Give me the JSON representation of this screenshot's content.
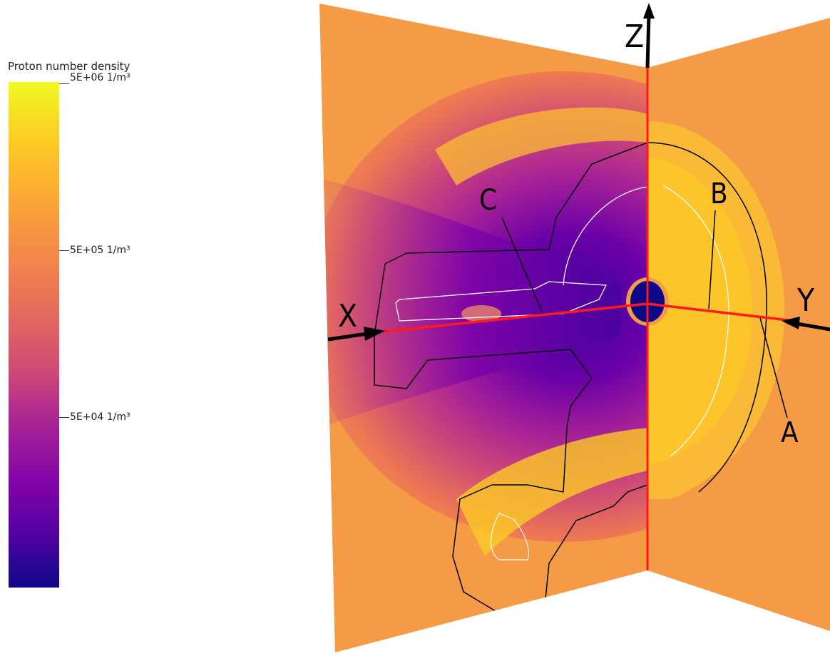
{
  "colorbar": {
    "title": "Proton number density",
    "ticks": [
      {
        "label": "5E+06 1/m³",
        "value": 5000000
      },
      {
        "label": "5E+05 1/m³",
        "value": 500000
      },
      {
        "label": "5E+04 1/m³",
        "value": 50000
      }
    ],
    "colormap": "plasma",
    "scale": "log"
  },
  "axes": {
    "x": "X",
    "y": "Y",
    "z": "Z"
  },
  "markers": {
    "a": "A",
    "b": "B",
    "c": "C"
  },
  "colors": {
    "background_field": "#f59a45",
    "axis_line": "#ff1a1a",
    "arrow": "#000000",
    "contour_outer": "#000000",
    "contour_inner": "#ffffff",
    "planet": "#0d0887"
  }
}
